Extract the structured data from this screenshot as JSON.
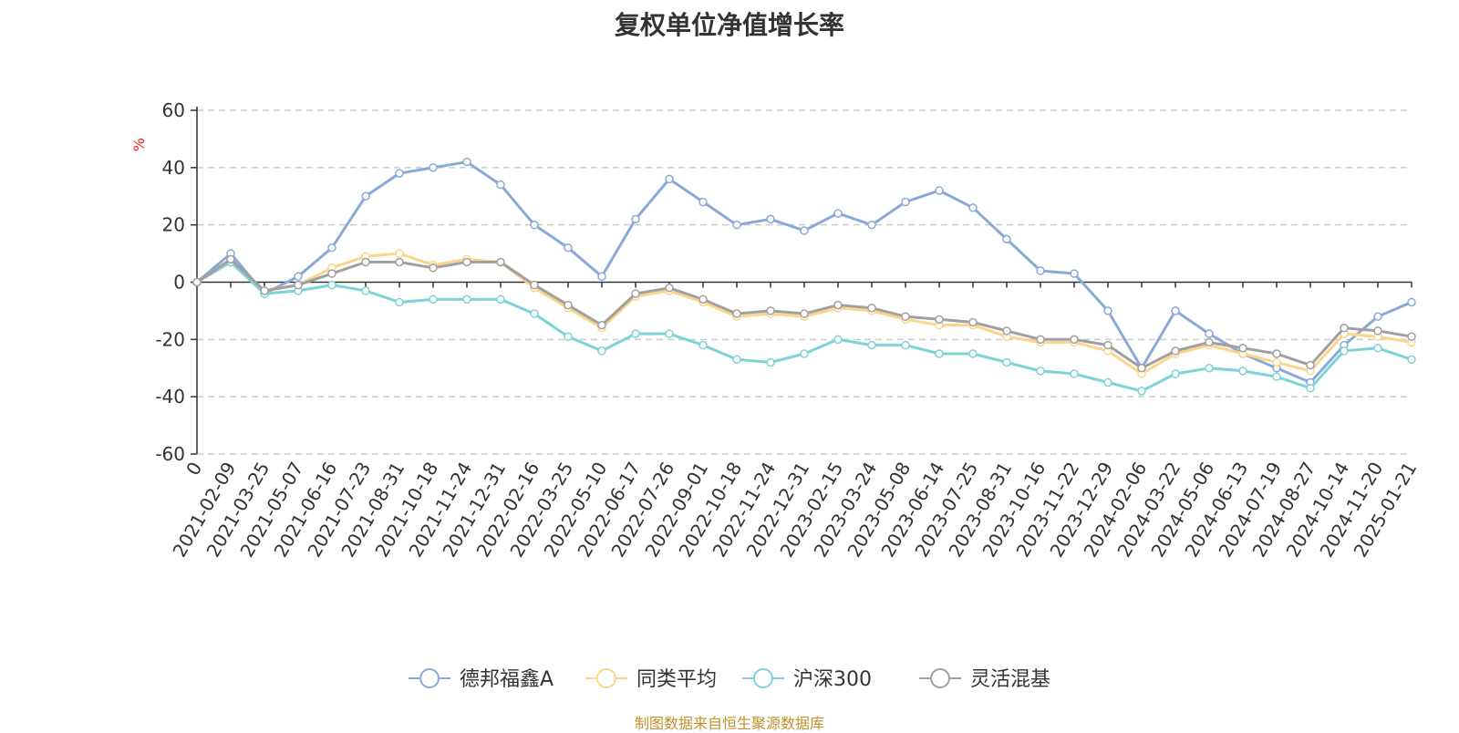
{
  "chart_data": {
    "type": "line",
    "title": "复权单位净值增长率",
    "ylabel": "%",
    "xlabel": "",
    "ylim": [
      -60,
      60
    ],
    "yticks": [
      60,
      40,
      20,
      0,
      -20,
      -40,
      -60
    ],
    "grid": true,
    "legend_position": "bottom",
    "x": [
      "0",
      "2021-02-09",
      "2021-03-25",
      "2021-05-07",
      "2021-06-16",
      "2021-07-23",
      "2021-08-31",
      "2021-10-18",
      "2021-11-24",
      "2021-12-31",
      "2022-02-16",
      "2022-03-25",
      "2022-05-10",
      "2022-06-17",
      "2022-07-26",
      "2022-09-01",
      "2022-10-18",
      "2022-11-24",
      "2022-12-31",
      "2023-02-15",
      "2023-03-24",
      "2023-05-08",
      "2023-06-14",
      "2023-07-25",
      "2023-08-31",
      "2023-10-16",
      "2023-11-22",
      "2023-12-29",
      "2024-02-06",
      "2024-03-22",
      "2024-05-06",
      "2024-06-13",
      "2024-07-19",
      "2024-08-27",
      "2024-10-14",
      "2024-11-20",
      "2025-01-21"
    ],
    "series": [
      {
        "name": "德邦福鑫A",
        "color": "#8aa9d8",
        "values": [
          0,
          10,
          -4,
          2,
          12,
          30,
          38,
          40,
          42,
          34,
          20,
          12,
          2,
          22,
          36,
          28,
          20,
          22,
          18,
          24,
          20,
          28,
          32,
          26,
          15,
          4,
          3,
          -10,
          -30,
          -10,
          -18,
          -25,
          -30,
          -35,
          -22,
          -12,
          -7
        ]
      },
      {
        "name": "同类平均",
        "color": "#fdd48a",
        "values": [
          0,
          7,
          -3,
          -1,
          5,
          9,
          10,
          6,
          8,
          7,
          -2,
          -9,
          -16,
          -5,
          -3,
          -7,
          -12,
          -11,
          -12,
          -9,
          -10,
          -13,
          -15,
          -15,
          -19,
          -21,
          -21,
          -24,
          -32,
          -25,
          -22,
          -25,
          -28,
          -31,
          -18,
          -19,
          -21
        ]
      },
      {
        "name": "沪深300",
        "color": "#7dd3d8",
        "values": [
          0,
          7,
          -4,
          -3,
          -1,
          -3,
          -7,
          -6,
          -6,
          -6,
          -11,
          -19,
          -24,
          -18,
          -18,
          -22,
          -27,
          -28,
          -25,
          -20,
          -22,
          -22,
          -25,
          -25,
          -28,
          -31,
          -32,
          -35,
          -38,
          -32,
          -30,
          -31,
          -33,
          -37,
          -24,
          -23,
          -27
        ]
      },
      {
        "name": "灵活混基",
        "color": "#a0a0a0",
        "values": [
          0,
          8,
          -3,
          -1,
          3,
          7,
          7,
          5,
          7,
          7,
          -1,
          -8,
          -15,
          -4,
          -2,
          -6,
          -11,
          -10,
          -11,
          -8,
          -9,
          -12,
          -13,
          -14,
          -17,
          -20,
          -20,
          -22,
          -30,
          -24,
          -21,
          -23,
          -25,
          -29,
          -16,
          -17,
          -19
        ]
      }
    ]
  },
  "footer": "制图数据来自恒生聚源数据库"
}
